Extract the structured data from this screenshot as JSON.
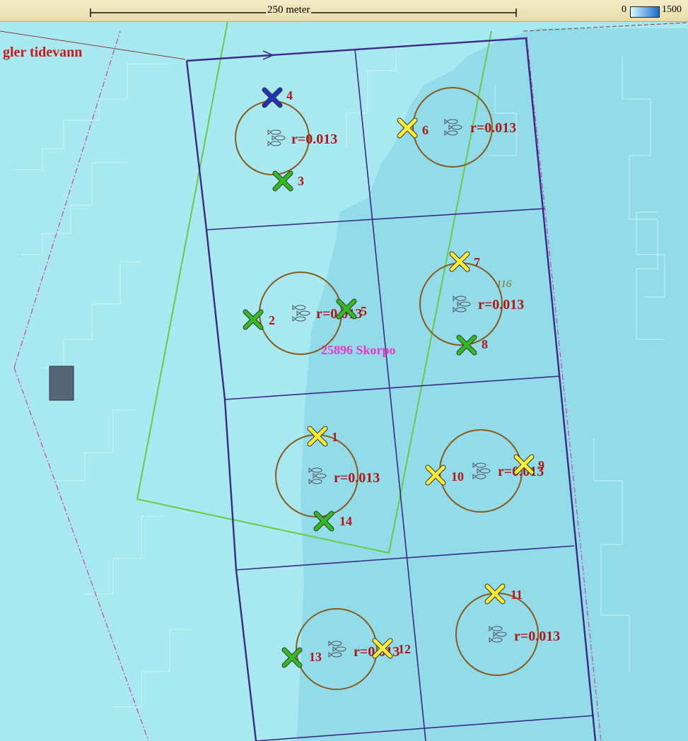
{
  "scale_bar": {
    "label": "250 meter"
  },
  "legend": {
    "min": "0",
    "max": "1500"
  },
  "area_label": "gler tidevann",
  "site_label": "25896 Skorpo",
  "depth_label": "116",
  "colors": {
    "water_shallow": "#a8e8f0",
    "water_deep": "#8fd8e8",
    "frame_line": "#3a2a88",
    "green_polygon": "#66cc44",
    "boundary": "#cc44aa",
    "cage_ring": "#8a5a1a",
    "label_red": "#b01818",
    "site_magenta": "#ee33cc",
    "marker_green": "#33bb22",
    "marker_yellow": "#ffee33",
    "marker_blue": "#2233bb"
  },
  "cages": [
    {
      "id": "cage-1",
      "radius_label": "r=0.013"
    },
    {
      "id": "cage-2",
      "radius_label": "r=0.013"
    },
    {
      "id": "cage-3",
      "radius_label": "r=0.013"
    },
    {
      "id": "cage-4",
      "radius_label": "r=0.013"
    },
    {
      "id": "cage-5",
      "radius_label": "r=0.013"
    },
    {
      "id": "cage-6",
      "radius_label": "r=0.013"
    },
    {
      "id": "cage-7",
      "radius_label": "r=0.013"
    },
    {
      "id": "cage-8",
      "radius_label": "r=0.013"
    }
  ],
  "markers": [
    {
      "label": "4",
      "color": "blue"
    },
    {
      "label": "3",
      "color": "green"
    },
    {
      "label": "6",
      "color": "yellow"
    },
    {
      "label": "7",
      "color": "yellow"
    },
    {
      "label": "8",
      "color": "green"
    },
    {
      "label": "2",
      "color": "green"
    },
    {
      "label": "5",
      "color": "green"
    },
    {
      "label": "1",
      "color": "yellow"
    },
    {
      "label": "14",
      "color": "green"
    },
    {
      "label": "10",
      "color": "yellow"
    },
    {
      "label": "9",
      "color": "yellow"
    },
    {
      "label": "11",
      "color": "yellow"
    },
    {
      "label": "13",
      "color": "green"
    },
    {
      "label": "12",
      "color": "yellow"
    }
  ]
}
